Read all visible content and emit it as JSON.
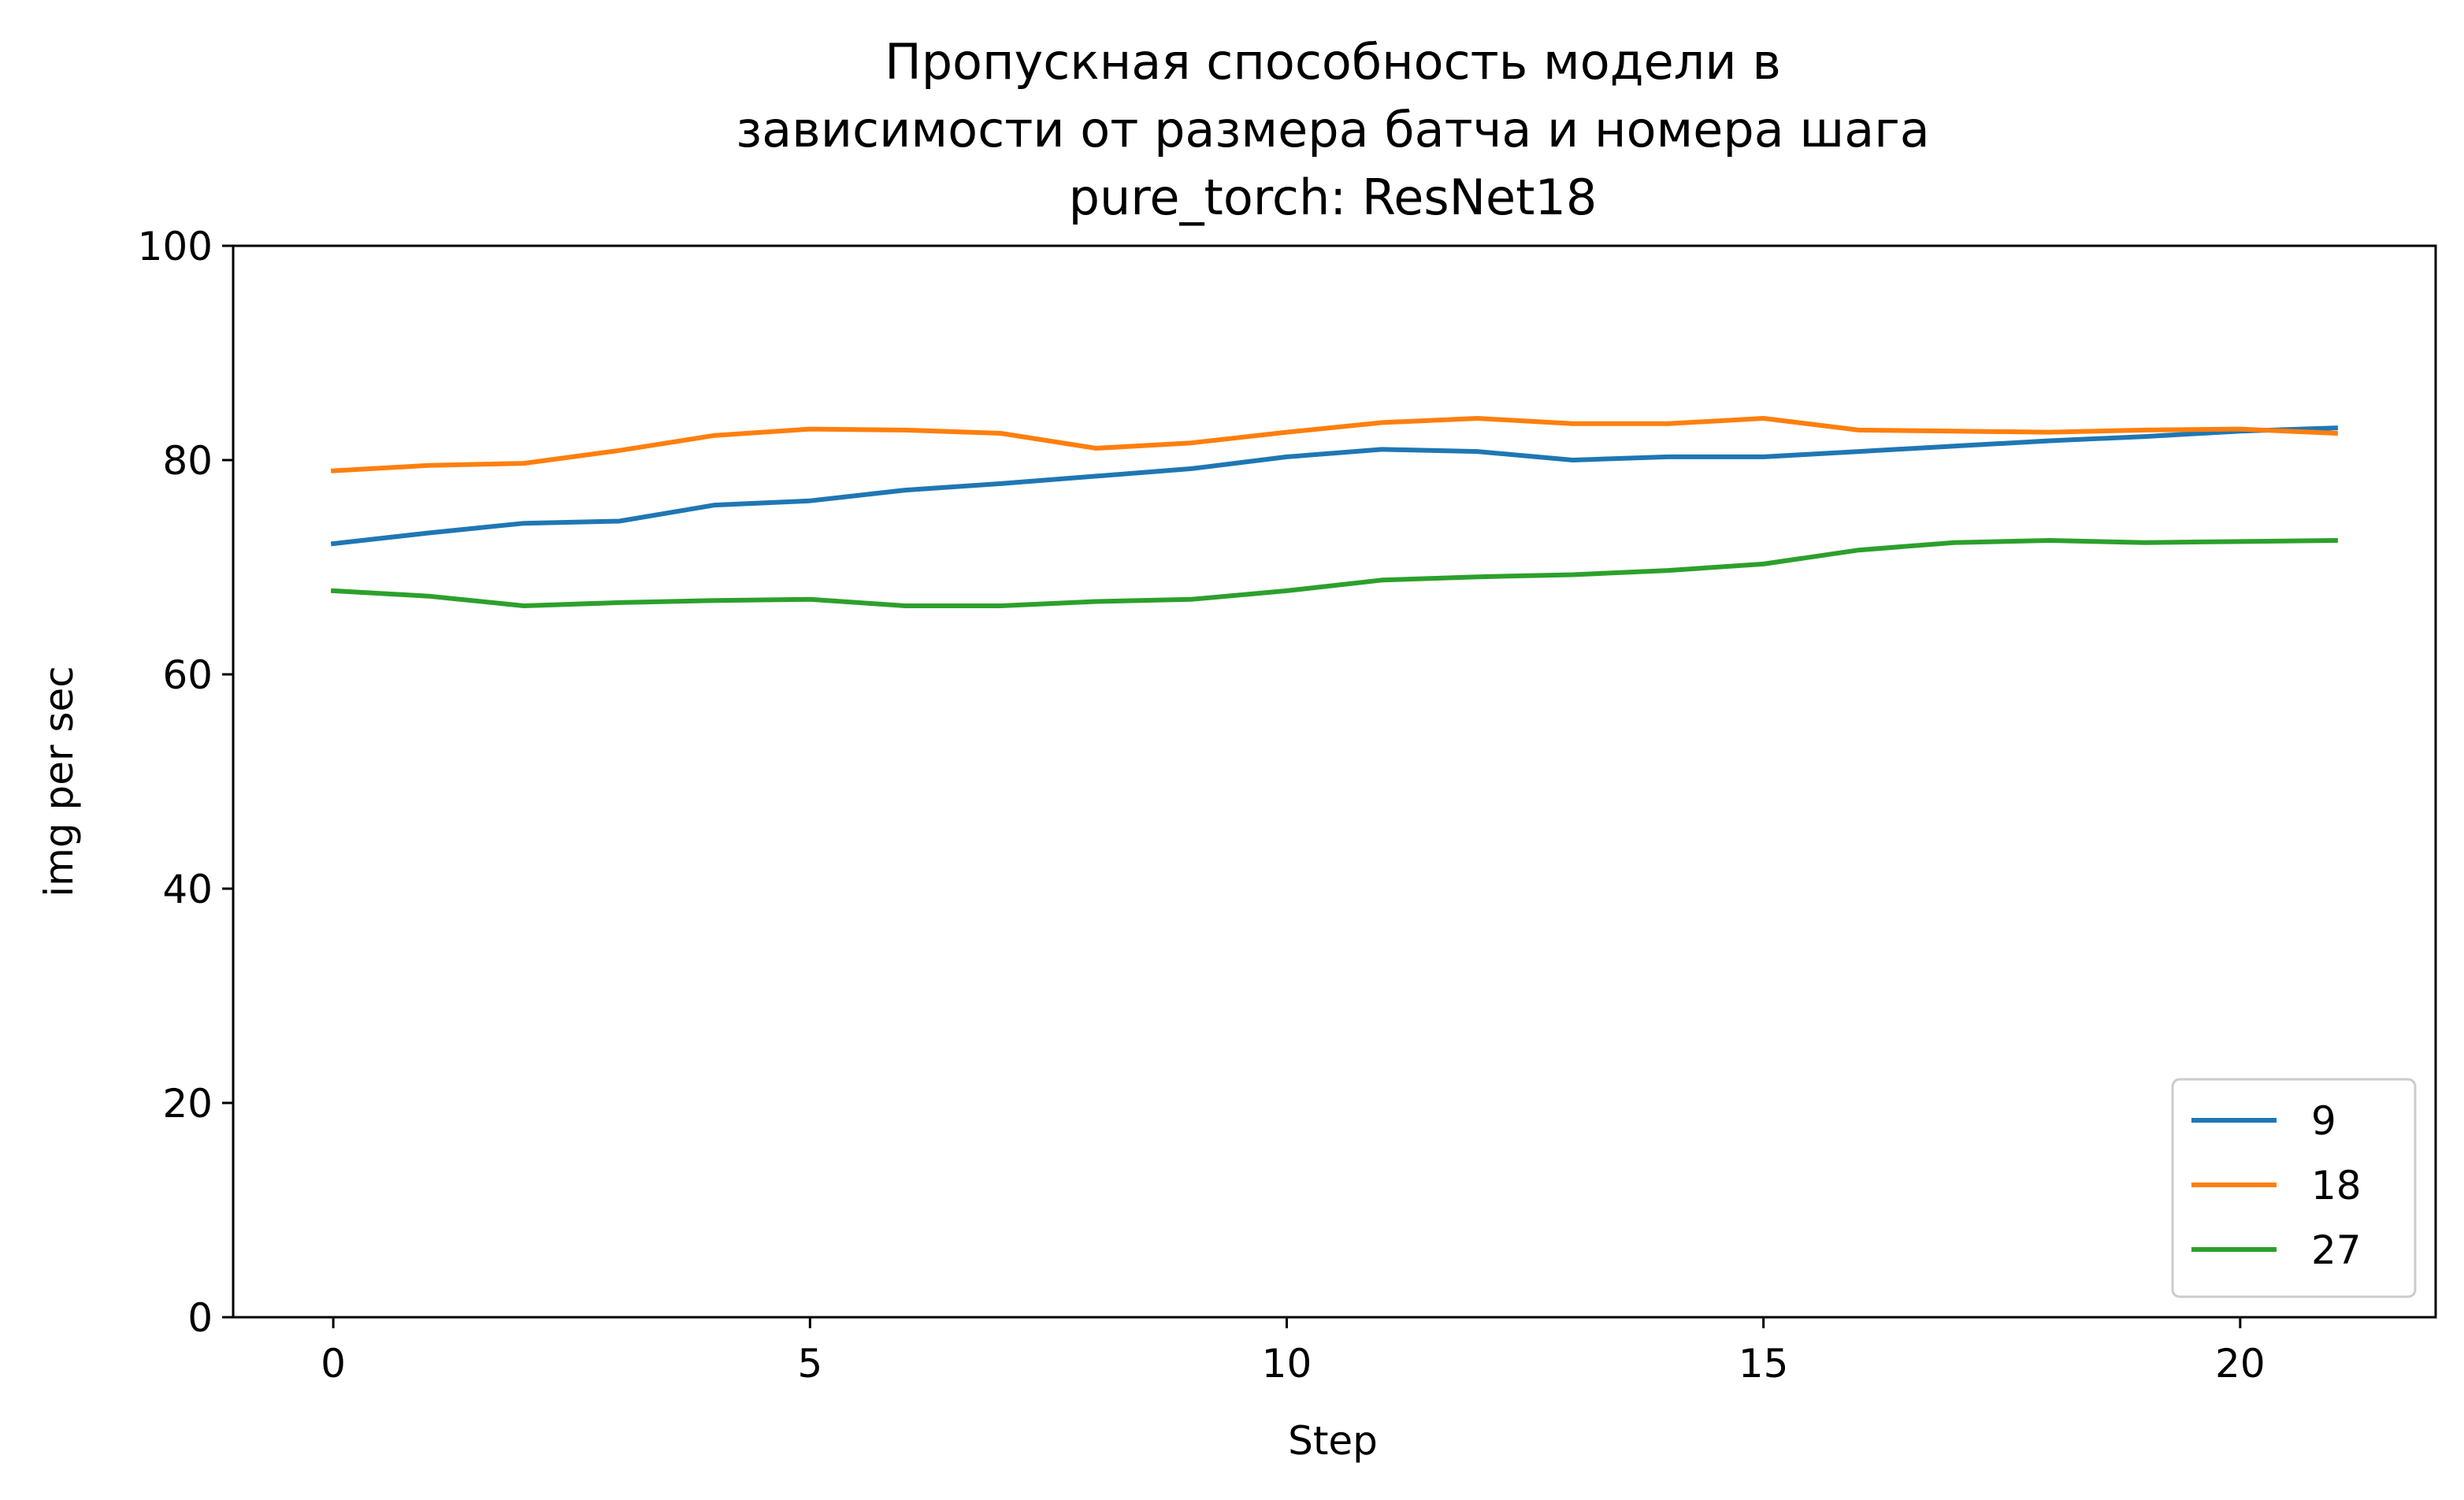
{
  "chart_data": {
    "type": "line",
    "title_lines": [
      "Пропускная способность модели в",
      "зависимости от размера батча и номера шага",
      "pure_torch:  ResNet18"
    ],
    "xlabel": "Step",
    "ylabel": "img per sec",
    "xlim": [
      -1.05,
      22.05
    ],
    "ylim": [
      0,
      100
    ],
    "xticks": [
      0,
      5,
      10,
      15,
      20
    ],
    "yticks": [
      0,
      20,
      40,
      60,
      80,
      100
    ],
    "grid": false,
    "legend_position": "lower-right",
    "x": [
      0,
      1,
      2,
      3,
      4,
      5,
      6,
      7,
      8,
      9,
      10,
      11,
      12,
      13,
      14,
      15,
      16,
      17,
      18,
      19,
      20,
      21
    ],
    "series": [
      {
        "name": "9",
        "color": "#1f77b4",
        "values": [
          72.2,
          73.2,
          74.1,
          74.3,
          75.8,
          76.2,
          77.2,
          77.8,
          78.5,
          79.2,
          80.3,
          81.0,
          80.8,
          80.0,
          80.3,
          80.3,
          80.8,
          81.3,
          81.8,
          82.2,
          82.7,
          83.0
        ]
      },
      {
        "name": "18",
        "color": "#ff7f0e",
        "values": [
          79.0,
          79.5,
          79.7,
          80.9,
          82.3,
          82.9,
          82.8,
          82.5,
          81.1,
          81.6,
          82.6,
          83.5,
          83.9,
          83.4,
          83.4,
          83.9,
          82.8,
          82.7,
          82.6,
          82.8,
          82.9,
          82.5
        ]
      },
      {
        "name": "27",
        "color": "#2ca02c",
        "values": [
          67.8,
          67.3,
          66.4,
          66.7,
          66.9,
          67.0,
          66.4,
          66.4,
          66.8,
          67.0,
          67.8,
          68.8,
          69.1,
          69.3,
          69.7,
          70.3,
          71.6,
          72.3,
          72.5,
          72.3,
          72.4,
          72.5
        ]
      }
    ]
  }
}
